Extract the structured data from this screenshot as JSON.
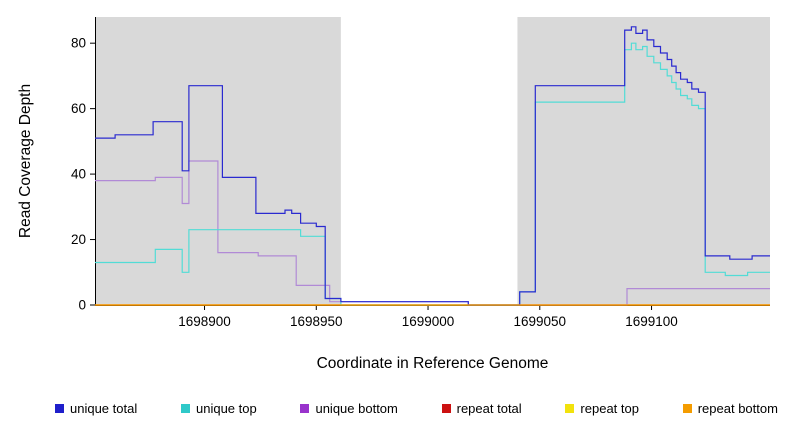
{
  "chart_data": {
    "type": "line",
    "title": "",
    "xlabel": "Coordinate in Reference Genome",
    "ylabel": "Read Coverage Depth",
    "xlim": [
      1698851,
      1699153
    ],
    "ylim": [
      0,
      88
    ],
    "xticks": [
      1698900,
      1698950,
      1699000,
      1699050,
      1699100
    ],
    "yticks": [
      0,
      20,
      40,
      60,
      80
    ],
    "panel_background": "#d9d9d9",
    "figure_background": "#ffffff",
    "axis_color": "#000000",
    "grid": false,
    "legend_position": "bottom",
    "shaded_regions": [
      {
        "x0": 1698851,
        "x1": 1698961
      },
      {
        "x0": 1699040,
        "x1": 1699153
      }
    ],
    "series": [
      {
        "name": "repeat total",
        "color": "#cc1111",
        "steps": [
          [
            1698851,
            0
          ]
        ]
      },
      {
        "name": "repeat top",
        "color": "#f2e20c",
        "steps": [
          [
            1698851,
            0
          ]
        ]
      },
      {
        "name": "unique bottom",
        "color": "#b18ad6",
        "steps": [
          [
            1698851,
            38
          ],
          [
            1698878,
            39
          ],
          [
            1698890,
            31
          ],
          [
            1698893,
            44
          ],
          [
            1698906,
            16
          ],
          [
            1698924,
            15
          ],
          [
            1698941,
            6
          ],
          [
            1698956,
            1
          ],
          [
            1699018,
            0
          ],
          [
            1699089,
            5
          ]
        ]
      },
      {
        "name": "unique top",
        "color": "#52dcd6",
        "steps": [
          [
            1698851,
            13
          ],
          [
            1698878,
            17
          ],
          [
            1698890,
            10
          ],
          [
            1698893,
            23
          ],
          [
            1698943,
            21
          ],
          [
            1698954,
            2
          ],
          [
            1698961,
            0
          ],
          [
            1699041,
            4
          ],
          [
            1699048,
            62
          ],
          [
            1699088,
            78
          ],
          [
            1699091,
            80
          ],
          [
            1699093,
            78
          ],
          [
            1699096,
            79
          ],
          [
            1699098,
            76
          ],
          [
            1699101,
            74
          ],
          [
            1699104,
            72
          ],
          [
            1699107,
            70
          ],
          [
            1699109,
            68
          ],
          [
            1699111,
            66
          ],
          [
            1699113,
            64
          ],
          [
            1699116,
            63
          ],
          [
            1699118,
            61
          ],
          [
            1699121,
            60
          ],
          [
            1699124,
            10
          ],
          [
            1699133,
            9
          ],
          [
            1699143,
            10
          ]
        ]
      },
      {
        "name": "unique total",
        "color": "#2a2ad0",
        "steps": [
          [
            1698851,
            51
          ],
          [
            1698860,
            52
          ],
          [
            1698877,
            56
          ],
          [
            1698890,
            41
          ],
          [
            1698893,
            67
          ],
          [
            1698908,
            39
          ],
          [
            1698923,
            28
          ],
          [
            1698936,
            29
          ],
          [
            1698939,
            28
          ],
          [
            1698943,
            25
          ],
          [
            1698950,
            24
          ],
          [
            1698954,
            2
          ],
          [
            1698961,
            1
          ],
          [
            1699018,
            0
          ],
          [
            1699041,
            4
          ],
          [
            1699048,
            67
          ],
          [
            1699088,
            84
          ],
          [
            1699091,
            85
          ],
          [
            1699093,
            83
          ],
          [
            1699096,
            84
          ],
          [
            1699098,
            81
          ],
          [
            1699101,
            79
          ],
          [
            1699104,
            77
          ],
          [
            1699107,
            75
          ],
          [
            1699109,
            73
          ],
          [
            1699111,
            71
          ],
          [
            1699113,
            69
          ],
          [
            1699116,
            68
          ],
          [
            1699118,
            66
          ],
          [
            1699121,
            65
          ],
          [
            1699124,
            15
          ],
          [
            1699135,
            14
          ],
          [
            1699145,
            15
          ]
        ]
      },
      {
        "name": "repeat bottom",
        "color": "#ff9d00",
        "steps": [
          [
            1698851,
            0
          ]
        ]
      }
    ],
    "legend": [
      {
        "label": "unique total",
        "color": "#1f1fcb"
      },
      {
        "label": "unique top",
        "color": "#2fc9c9"
      },
      {
        "label": "unique bottom",
        "color": "#9933cc"
      },
      {
        "label": "repeat total",
        "color": "#cc1111"
      },
      {
        "label": "repeat top",
        "color": "#f2e20c"
      },
      {
        "label": "repeat bottom",
        "color": "#f49c00"
      }
    ]
  }
}
